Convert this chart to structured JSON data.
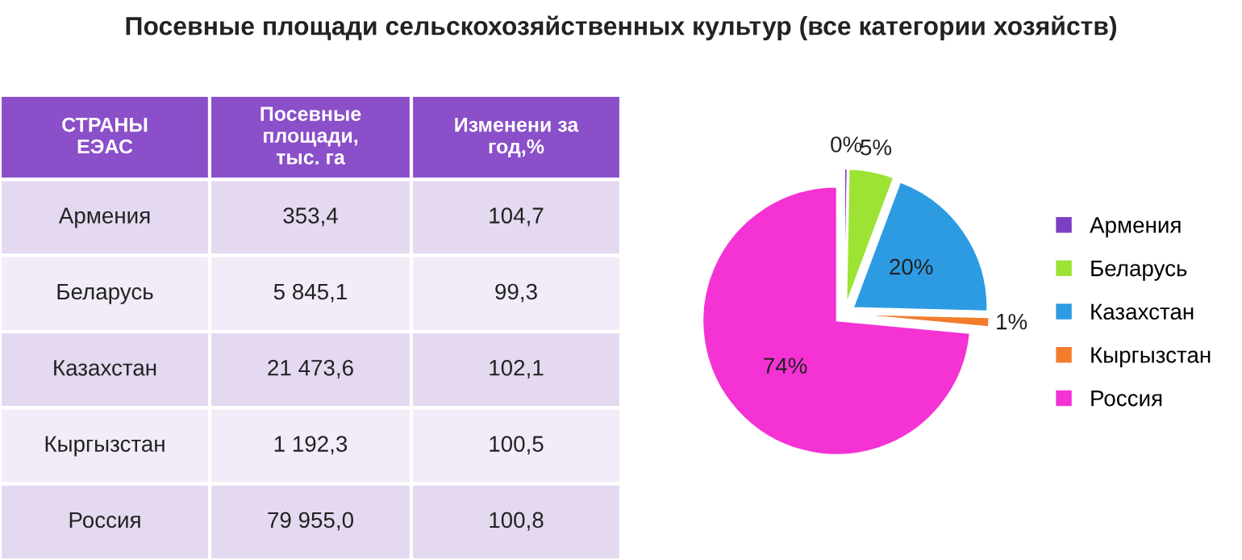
{
  "chart_data": [
    {
      "type": "other",
      "title": "Посевные площади сельскохозяйственных культур (все категории хозяйств)",
      "annotations": [
        "СТРАНЫ ЕЭАС",
        "Посевные площади, тыс. га",
        "Изменени за год,%",
        "Армения",
        "353,4",
        "104,7",
        "Беларусь",
        "5 845,1",
        "99,3",
        "Казахстан",
        "21 473,6",
        "102,1",
        "Кыргызстан",
        "1 192,3",
        "100,5",
        "Россия",
        "79 955,0",
        "100,8"
      ]
    },
    {
      "type": "pie",
      "categories": [
        "Армения",
        "Беларусь",
        "Казахстан",
        "Кыргызстан",
        "Россия"
      ],
      "values": [
        0.3,
        5.4,
        19.7,
        1.1,
        73.5
      ],
      "value_labels": [
        "0%",
        "5%",
        "20%",
        "1%",
        "74%"
      ],
      "colors": [
        "#7b3fc4",
        "#9de334",
        "#2d9be2",
        "#f27c2c",
        "#f532d4"
      ],
      "legend": "right"
    }
  ]
}
